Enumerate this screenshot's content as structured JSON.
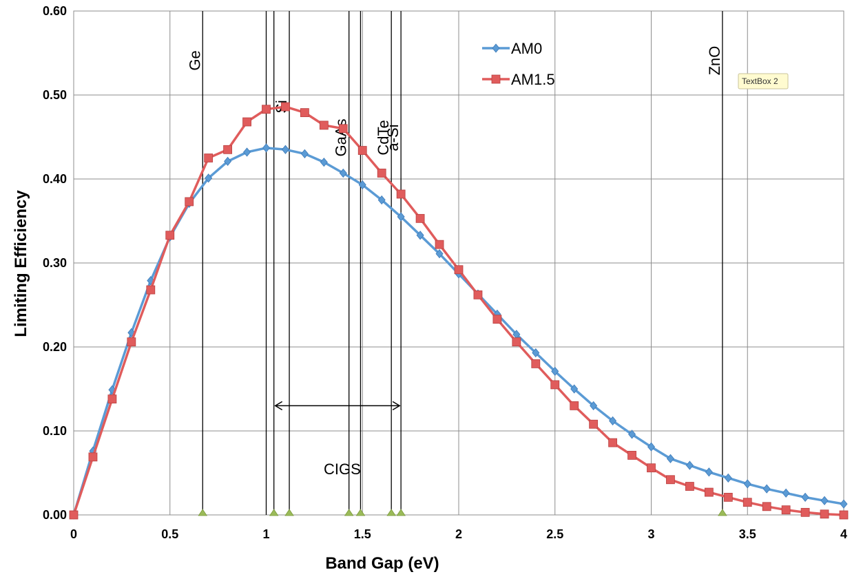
{
  "chart_data": {
    "type": "line",
    "xlabel": "Band Gap (eV)",
    "ylabel": "Limiting Efficiency",
    "xlim": [
      0,
      4
    ],
    "ylim": [
      0,
      0.6
    ],
    "x_ticks": [
      "0",
      "0.5",
      "1",
      "1.5",
      "2",
      "2.5",
      "3",
      "3.5",
      "4"
    ],
    "y_ticks": [
      "0.00",
      "0.10",
      "0.20",
      "0.30",
      "0.40",
      "0.50",
      "0.60"
    ],
    "grid": true,
    "legend_position": "top-center",
    "series": [
      {
        "name": "AM0",
        "color": "#5b9bd5",
        "marker": "diamond",
        "x": [
          0,
          0.1,
          0.2,
          0.3,
          0.4,
          0.5,
          0.6,
          0.7,
          0.8,
          0.9,
          1.0,
          1.1,
          1.2,
          1.3,
          1.4,
          1.5,
          1.6,
          1.7,
          1.8,
          1.9,
          2.0,
          2.1,
          2.2,
          2.3,
          2.4,
          2.5,
          2.6,
          2.7,
          2.8,
          2.9,
          3.0,
          3.1,
          3.2,
          3.3,
          3.4,
          3.5,
          3.6,
          3.7,
          3.8,
          3.9,
          4.0
        ],
        "y": [
          0.0,
          0.076,
          0.149,
          0.217,
          0.279,
          0.331,
          0.371,
          0.401,
          0.421,
          0.432,
          0.437,
          0.435,
          0.43,
          0.42,
          0.407,
          0.393,
          0.375,
          0.355,
          0.333,
          0.311,
          0.287,
          0.263,
          0.239,
          0.215,
          0.193,
          0.171,
          0.15,
          0.13,
          0.112,
          0.096,
          0.081,
          0.067,
          0.059,
          0.051,
          0.044,
          0.037,
          0.031,
          0.026,
          0.021,
          0.017,
          0.013
        ]
      },
      {
        "name": "AM1.5",
        "color": "#e05c5c",
        "marker": "square",
        "x": [
          0,
          0.1,
          0.2,
          0.3,
          0.4,
          0.5,
          0.6,
          0.7,
          0.8,
          0.9,
          1.0,
          1.1,
          1.2,
          1.3,
          1.4,
          1.5,
          1.6,
          1.7,
          1.8,
          1.9,
          2.0,
          2.1,
          2.2,
          2.3,
          2.4,
          2.5,
          2.6,
          2.7,
          2.8,
          2.9,
          3.0,
          3.1,
          3.2,
          3.3,
          3.4,
          3.5,
          3.6,
          3.7,
          3.8,
          3.9,
          4.0
        ],
        "y": [
          0.0,
          0.069,
          0.138,
          0.206,
          0.268,
          0.333,
          0.373,
          0.425,
          0.435,
          0.468,
          0.483,
          0.486,
          0.479,
          0.464,
          0.46,
          0.434,
          0.407,
          0.382,
          0.353,
          0.322,
          0.292,
          0.262,
          0.233,
          0.206,
          0.18,
          0.155,
          0.13,
          0.108,
          0.086,
          0.071,
          0.056,
          0.042,
          0.034,
          0.027,
          0.021,
          0.015,
          0.01,
          0.006,
          0.003,
          0.001,
          0.0
        ]
      }
    ],
    "materials": [
      {
        "label": "Ge",
        "x": 0.67
      },
      {
        "label": "",
        "x": 1.0
      },
      {
        "label": "",
        "x": 1.04
      },
      {
        "label": "Si",
        "x": 1.12
      },
      {
        "label": "GaAs",
        "x": 1.43
      },
      {
        "label": "",
        "x": 1.49
      },
      {
        "label": "CdTe",
        "x": 1.65
      },
      {
        "label": "a-Si",
        "x": 1.7
      },
      {
        "label": "ZnO",
        "x": 3.37
      }
    ],
    "triangle_markers": [
      0.67,
      1.04,
      1.12,
      1.43,
      1.49,
      1.65,
      1.7,
      3.37
    ],
    "range_annotation": {
      "label": "CIGS",
      "x_start": 1.04,
      "x_end": 1.7,
      "y": 0.13
    },
    "textbox": "TextBox 2"
  }
}
